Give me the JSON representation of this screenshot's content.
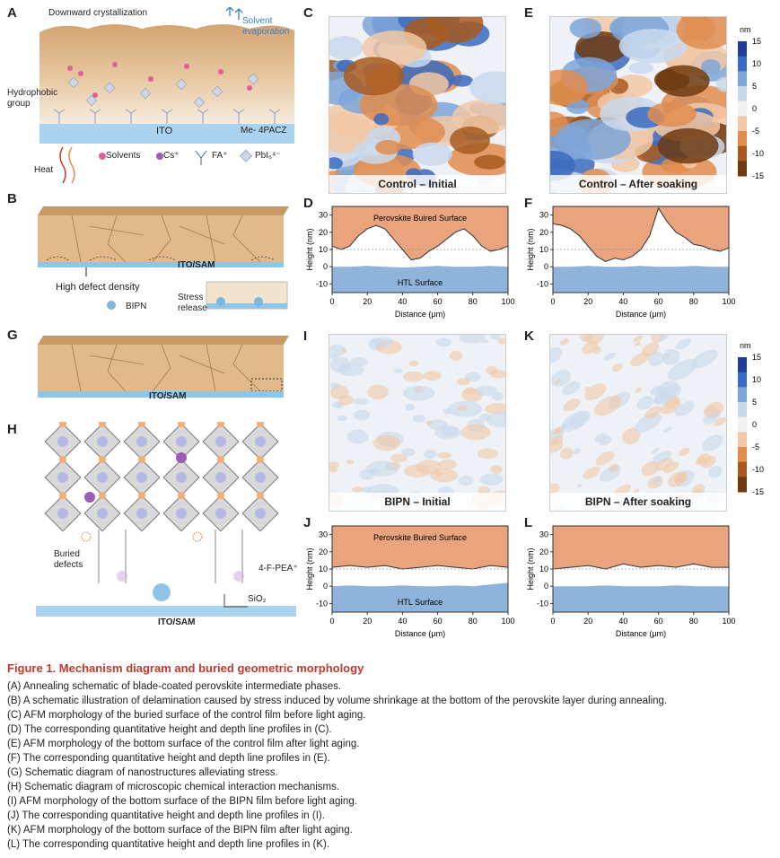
{
  "panels": {
    "A": "A",
    "B": "B",
    "C": "C",
    "D": "D",
    "E": "E",
    "F": "F",
    "G": "G",
    "H": "H",
    "I": "I",
    "J": "J",
    "K": "K",
    "L": "L"
  },
  "schematicA": {
    "downward": "Downward crystallization",
    "solvent": "Solvent evaporation",
    "hydrophobic": "Hydrophobic group",
    "ito": "ITO",
    "meapacz": "Me- 4PACZ",
    "heat": "Heat",
    "legend": [
      "Solvents",
      "Cs⁺",
      "FA⁺",
      "PbI₆⁴⁻"
    ],
    "colors": {
      "film": "#e0b98b",
      "filmTop": "#cf9e69",
      "ito": "#a9d3ee",
      "solvent": "#e0609b",
      "cs": "#9a5cb4"
    }
  },
  "schematicB": {
    "substrate": "ITO/SAM",
    "defect": "High defect density",
    "bipn": "BIPN",
    "stress": "Stress release"
  },
  "schematicG": {
    "substrate": "ITO/SAM"
  },
  "schematicH": {
    "buried": "Buried defects",
    "fpea": "4-F-PEA⁺",
    "sio2": "SiO₂",
    "substrate": "ITO/SAM"
  },
  "afm": {
    "C": "Control – Initial",
    "E": "Control – After soaking",
    "I": "BIPN – Initial",
    "K": "BIPN – After soaking"
  },
  "colorbar": {
    "unit": "nm",
    "ticks": [
      "15",
      "10",
      "5",
      "0",
      "-5",
      "-10",
      "-15"
    ],
    "colors": [
      "#1f3f96",
      "#3b6bc0",
      "#7ea6d8",
      "#c9d9ec",
      "#f1f1f1",
      "#f2c8a6",
      "#e08d4f",
      "#a85a1e",
      "#6e3a10"
    ]
  },
  "profiles": {
    "ylabel": "Height (nm)",
    "xlabel": "Distance (μm)",
    "yticks": [
      "30",
      "20",
      "10",
      "0",
      "-10"
    ],
    "xticks": [
      "0",
      "20",
      "40",
      "60",
      "80",
      "100"
    ],
    "perovskite": "Perovskite Buired Surface",
    "htl": "HTL Surface"
  },
  "chart_data": [
    {
      "panel": "D",
      "type": "area",
      "xlabel": "Distance (μm)",
      "ylabel": "Height (nm)",
      "xlim": [
        0,
        100
      ],
      "ylim": [
        -15,
        35
      ],
      "series": [
        {
          "name": "Perovskite Buired Surface",
          "x": [
            0,
            5,
            10,
            15,
            20,
            25,
            30,
            35,
            40,
            45,
            50,
            55,
            60,
            65,
            70,
            75,
            80,
            85,
            90,
            95,
            100
          ],
          "values": [
            12,
            10,
            12,
            18,
            22,
            24,
            22,
            16,
            10,
            4,
            5,
            9,
            12,
            16,
            20,
            22,
            18,
            12,
            9,
            10,
            12
          ]
        },
        {
          "name": "HTL Surface",
          "x": [
            0,
            10,
            20,
            30,
            40,
            50,
            60,
            70,
            80,
            90,
            100
          ],
          "values": [
            0,
            0,
            0.5,
            0,
            -0.5,
            0,
            0.5,
            0,
            0,
            0.5,
            0
          ]
        }
      ]
    },
    {
      "panel": "F",
      "type": "area",
      "xlabel": "Distance (μm)",
      "ylabel": "Height (nm)",
      "xlim": [
        0,
        100
      ],
      "ylim": [
        -15,
        35
      ],
      "series": [
        {
          "name": "",
          "x": [
            0,
            5,
            10,
            15,
            20,
            25,
            30,
            35,
            40,
            45,
            50,
            55,
            60,
            65,
            70,
            75,
            80,
            85,
            90,
            95,
            100
          ],
          "values": [
            25,
            24,
            22,
            18,
            12,
            6,
            3,
            5,
            4,
            6,
            10,
            18,
            34,
            26,
            20,
            17,
            13,
            12,
            10,
            9,
            11
          ]
        },
        {
          "name": "",
          "x": [
            0,
            10,
            20,
            30,
            40,
            50,
            60,
            70,
            80,
            90,
            100
          ],
          "values": [
            0,
            0,
            0.5,
            0,
            0,
            0.5,
            0,
            0,
            0.5,
            0,
            0
          ]
        }
      ]
    },
    {
      "panel": "J",
      "type": "area",
      "xlabel": "Distance (μm)",
      "ylabel": "Height (nm)",
      "xlim": [
        0,
        100
      ],
      "ylim": [
        -15,
        35
      ],
      "series": [
        {
          "name": "Perovskite Buired Surface",
          "x": [
            0,
            10,
            20,
            30,
            40,
            50,
            60,
            70,
            80,
            90,
            100
          ],
          "values": [
            11,
            12,
            11,
            12,
            10,
            11,
            12,
            11,
            10,
            12,
            11
          ]
        },
        {
          "name": "HTL Surface",
          "x": [
            0,
            10,
            20,
            30,
            40,
            50,
            60,
            70,
            80,
            90,
            100
          ],
          "values": [
            0,
            0.5,
            0,
            0,
            0.5,
            0,
            0,
            0.5,
            0,
            1,
            2
          ]
        }
      ]
    },
    {
      "panel": "L",
      "type": "area",
      "xlabel": "Distance (μm)",
      "ylabel": "Height (nm)",
      "xlim": [
        0,
        100
      ],
      "ylim": [
        -15,
        35
      ],
      "series": [
        {
          "name": "",
          "x": [
            0,
            10,
            20,
            30,
            40,
            50,
            60,
            70,
            80,
            90,
            100
          ],
          "values": [
            10,
            11,
            12,
            10,
            13,
            11,
            12,
            11,
            13,
            11,
            11
          ]
        },
        {
          "name": "",
          "x": [
            0,
            10,
            20,
            30,
            40,
            50,
            60,
            70,
            80,
            90,
            100
          ],
          "values": [
            0,
            0,
            0,
            0.5,
            0,
            0,
            0,
            0.5,
            0,
            0,
            0
          ]
        }
      ]
    }
  ],
  "caption": {
    "title": "Figure 1. Mechanism diagram and buried geometric morphology",
    "lines": [
      "(A) Annealing schematic of blade-coated perovskite intermediate phases.",
      "(B) A schematic illustration of delamination caused by stress induced by volume shrinkage at the bottom of the perovskite layer during annealing.",
      "(C) AFM morphology of the buried surface of the control film before light aging.",
      "(D) The corresponding quantitative height and depth line profiles in (C).",
      "(E) AFM morphology of the bottom surface of the control film after light aging.",
      "(F) The corresponding quantitative height and depth line profiles in (E).",
      "(G) Schematic diagram of nanostructures alleviating stress.",
      "(H) Schematic diagram of microscopic chemical interaction mechanisms.",
      "(I) AFM morphology of the bottom surface of the BIPN film before light aging.",
      "(J) The corresponding quantitative height and depth line profiles in (I).",
      "(K) AFM morphology of the bottom surface of the BIPN film after light aging.",
      "(L) The corresponding quantitative height and depth line profiles in (K)."
    ]
  }
}
